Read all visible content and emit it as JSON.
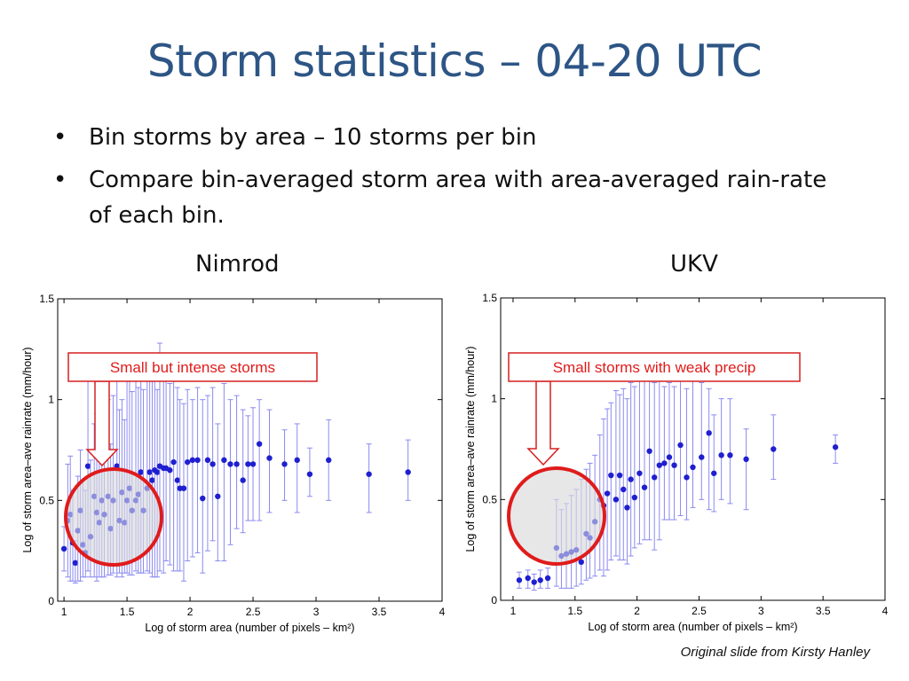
{
  "slide": {
    "title": "Storm statistics – 04-20 UTC",
    "bullets": [
      "Bin storms by area – 10 storms per bin",
      "Compare bin-averaged storm area with area-averaged rain-rate of each bin."
    ],
    "credit": "Original slide from Kirsty Hanley"
  },
  "chart_data": [
    {
      "type": "scatter",
      "panel_title": "Nimrod",
      "xlabel": "Log of storm area (number of pixels – km²)",
      "ylabel": "Log of storm area–ave rainrate (mm/hour)",
      "xlim": [
        0.95,
        4.0
      ],
      "ylim": [
        0.0,
        1.5
      ],
      "xticks": [
        "1",
        "1.5",
        "2",
        "2.5",
        "3",
        "3.5",
        "4"
      ],
      "yticks": [
        "0",
        "0.5",
        "1",
        "1.5"
      ],
      "annotation": "Small but intense storms",
      "marker_color": "#1f1fd0",
      "points": [
        [
          1.0,
          0.26,
          0.15,
          0.37
        ],
        [
          1.03,
          0.4,
          0.12,
          0.68
        ],
        [
          1.05,
          0.43,
          0.1,
          0.72
        ],
        [
          1.07,
          0.29,
          0.1,
          0.55
        ],
        [
          1.09,
          0.19,
          0.09,
          0.3
        ],
        [
          1.11,
          0.35,
          0.1,
          0.62
        ],
        [
          1.13,
          0.45,
          0.1,
          0.75
        ],
        [
          1.15,
          0.28,
          0.12,
          0.6
        ],
        [
          1.17,
          0.24,
          0.12,
          0.55
        ],
        [
          1.19,
          0.67,
          0.15,
          1.12
        ],
        [
          1.21,
          0.32,
          0.12,
          0.7
        ],
        [
          1.24,
          0.52,
          0.12,
          0.88
        ],
        [
          1.26,
          0.44,
          0.1,
          0.93
        ],
        [
          1.28,
          0.39,
          0.12,
          0.82
        ],
        [
          1.3,
          0.5,
          0.12,
          1.05
        ],
        [
          1.32,
          0.43,
          0.12,
          0.85
        ],
        [
          1.35,
          0.52,
          0.13,
          1.0
        ],
        [
          1.37,
          0.36,
          0.13,
          0.78
        ],
        [
          1.39,
          0.5,
          0.14,
          1.02
        ],
        [
          1.42,
          0.67,
          0.12,
          1.2
        ],
        [
          1.44,
          0.4,
          0.14,
          0.95
        ],
        [
          1.46,
          0.54,
          0.12,
          1.0
        ],
        [
          1.48,
          0.39,
          0.14,
          0.9
        ],
        [
          1.5,
          0.5,
          0.14,
          1.1
        ],
        [
          1.52,
          0.56,
          0.13,
          1.18
        ],
        [
          1.54,
          0.45,
          0.13,
          1.04
        ],
        [
          1.57,
          0.5,
          0.15,
          1.1
        ],
        [
          1.59,
          0.53,
          0.14,
          1.06
        ],
        [
          1.61,
          0.64,
          0.14,
          1.12
        ],
        [
          1.63,
          0.45,
          0.14,
          1.05
        ],
        [
          1.66,
          0.56,
          0.15,
          1.12
        ],
        [
          1.68,
          0.64,
          0.14,
          1.14
        ],
        [
          1.7,
          0.6,
          0.12,
          1.16
        ],
        [
          1.72,
          0.65,
          0.12,
          1.1
        ],
        [
          1.74,
          0.64,
          0.12,
          1.05
        ],
        [
          1.76,
          0.67,
          0.15,
          1.28
        ],
        [
          1.79,
          0.66,
          0.14,
          1.12
        ],
        [
          1.81,
          0.66,
          0.2,
          1.14
        ],
        [
          1.84,
          0.65,
          0.18,
          1.08
        ],
        [
          1.87,
          0.69,
          0.15,
          1.12
        ],
        [
          1.9,
          0.6,
          0.15,
          1.06
        ],
        [
          1.92,
          0.56,
          0.15,
          1.0
        ],
        [
          1.95,
          0.56,
          0.1,
          0.98
        ],
        [
          1.98,
          0.69,
          0.2,
          1.05
        ],
        [
          2.02,
          0.7,
          0.22,
          1.0
        ],
        [
          2.06,
          0.7,
          0.24,
          1.06
        ],
        [
          2.1,
          0.51,
          0.14,
          1.0
        ],
        [
          2.14,
          0.7,
          0.25,
          1.02
        ],
        [
          2.18,
          0.68,
          0.3,
          1.06
        ],
        [
          2.22,
          0.52,
          0.2,
          0.88
        ],
        [
          2.27,
          0.7,
          0.2,
          1.08
        ],
        [
          2.32,
          0.68,
          0.28,
          1.0
        ],
        [
          2.37,
          0.68,
          0.36,
          1.02
        ],
        [
          2.42,
          0.6,
          0.34,
          0.95
        ],
        [
          2.46,
          0.68,
          0.4,
          0.92
        ],
        [
          2.5,
          0.68,
          0.4,
          0.96
        ],
        [
          2.55,
          0.78,
          0.4,
          1.0
        ],
        [
          2.63,
          0.71,
          0.44,
          0.95
        ],
        [
          2.75,
          0.68,
          0.5,
          0.85
        ],
        [
          2.85,
          0.7,
          0.44,
          0.88
        ],
        [
          2.95,
          0.63,
          0.52,
          0.76
        ],
        [
          3.1,
          0.7,
          0.5,
          0.9
        ],
        [
          3.42,
          0.63,
          0.44,
          0.78
        ],
        [
          3.73,
          0.64,
          0.5,
          0.8
        ]
      ]
    },
    {
      "type": "scatter",
      "panel_title": "UKV",
      "xlabel": "Log of storm area (number of pixels – km²)",
      "ylabel": "Log of storm area–ave rainrate (mm/hour)",
      "xlim": [
        0.9,
        4.0
      ],
      "ylim": [
        0.0,
        1.5
      ],
      "xticks": [
        "1",
        "1.5",
        "2",
        "2.5",
        "3",
        "3.5",
        "4"
      ],
      "yticks": [
        "0",
        "0.5",
        "1",
        "1.5"
      ],
      "annotation": "Small storms with weak precip",
      "marker_color": "#1f1fd0",
      "points": [
        [
          1.05,
          0.1,
          0.06,
          0.14
        ],
        [
          1.12,
          0.11,
          0.06,
          0.15
        ],
        [
          1.17,
          0.09,
          0.05,
          0.13
        ],
        [
          1.22,
          0.1,
          0.06,
          0.15
        ],
        [
          1.28,
          0.11,
          0.06,
          0.16
        ],
        [
          1.35,
          0.26,
          0.07,
          0.5
        ],
        [
          1.39,
          0.22,
          0.06,
          0.45
        ],
        [
          1.43,
          0.23,
          0.06,
          0.48
        ],
        [
          1.47,
          0.24,
          0.06,
          0.52
        ],
        [
          1.51,
          0.25,
          0.07,
          0.55
        ],
        [
          1.55,
          0.19,
          0.08,
          0.6
        ],
        [
          1.59,
          0.33,
          0.1,
          0.65
        ],
        [
          1.62,
          0.31,
          0.11,
          0.68
        ],
        [
          1.66,
          0.39,
          0.12,
          0.72
        ],
        [
          1.7,
          0.5,
          0.15,
          0.82
        ],
        [
          1.73,
          0.47,
          0.12,
          0.9
        ],
        [
          1.76,
          0.53,
          0.15,
          0.95
        ],
        [
          1.79,
          0.62,
          0.2,
          0.98
        ],
        [
          1.83,
          0.5,
          0.22,
          1.04
        ],
        [
          1.86,
          0.62,
          0.2,
          1.02
        ],
        [
          1.89,
          0.55,
          0.2,
          1.05
        ],
        [
          1.92,
          0.46,
          0.18,
          1.0
        ],
        [
          1.95,
          0.6,
          0.22,
          1.08
        ],
        [
          1.98,
          0.51,
          0.26,
          1.06
        ],
        [
          2.02,
          0.63,
          0.28,
          1.1
        ],
        [
          2.06,
          0.56,
          0.3,
          1.1
        ],
        [
          2.1,
          0.74,
          0.3,
          1.12
        ],
        [
          2.14,
          0.61,
          0.25,
          1.08
        ],
        [
          2.18,
          0.67,
          0.3,
          1.1
        ],
        [
          2.22,
          0.68,
          0.4,
          1.06
        ],
        [
          2.26,
          0.71,
          0.4,
          1.08
        ],
        [
          2.3,
          0.67,
          0.4,
          1.06
        ],
        [
          2.35,
          0.77,
          0.42,
          1.12
        ],
        [
          2.4,
          0.61,
          0.4,
          1.05
        ],
        [
          2.45,
          0.66,
          0.46,
          1.1
        ],
        [
          2.52,
          0.71,
          0.5,
          1.08
        ],
        [
          2.58,
          0.83,
          0.45,
          1.05
        ],
        [
          2.62,
          0.63,
          0.44,
          0.92
        ],
        [
          2.68,
          0.72,
          0.5,
          1.0
        ],
        [
          2.75,
          0.72,
          0.48,
          1.0
        ],
        [
          2.88,
          0.7,
          0.45,
          0.85
        ],
        [
          3.1,
          0.75,
          0.6,
          0.92
        ],
        [
          3.6,
          0.76,
          0.68,
          0.82
        ]
      ]
    }
  ]
}
